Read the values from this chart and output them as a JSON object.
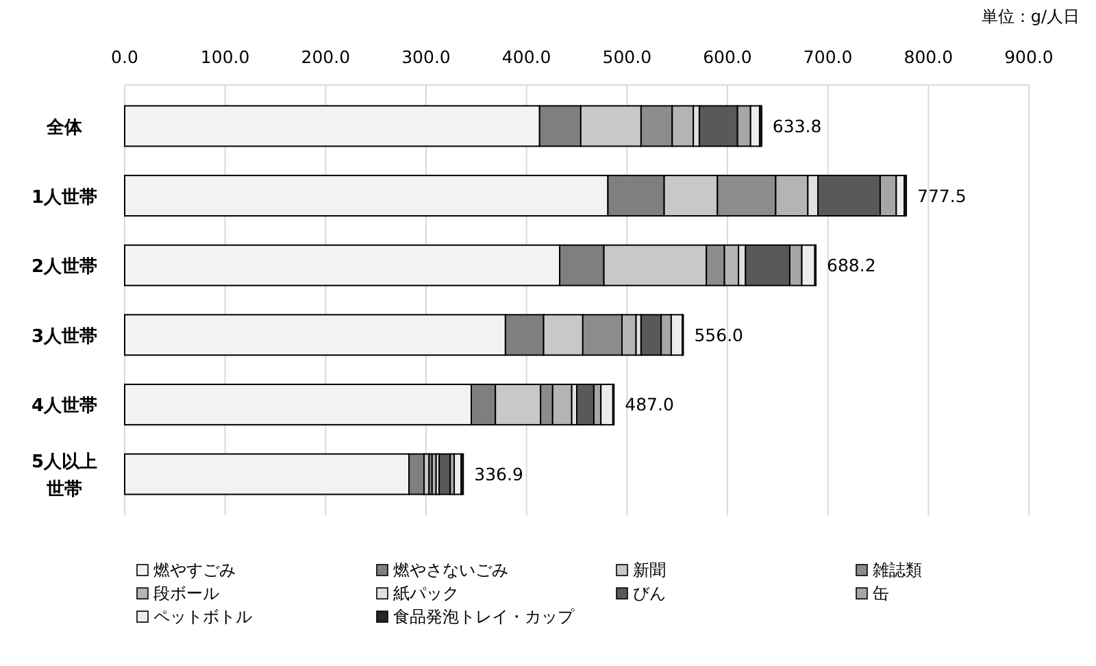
{
  "chart_data": {
    "type": "bar",
    "orientation": "horizontal",
    "stacked": true,
    "categories": [
      "全体",
      "1人世帯",
      "2人世帯",
      "3人世帯",
      "4人世帯",
      "5人以上世帯"
    ],
    "series": [
      {
        "name": "燃やすごみ",
        "color": "#f2f2f2",
        "values": [
          413,
          481,
          433,
          379,
          345,
          283
        ]
      },
      {
        "name": "燃やさないごみ",
        "color": "#7f7f7f",
        "values": [
          41,
          56,
          44,
          38,
          24,
          15
        ]
      },
      {
        "name": "新聞",
        "color": "#c8c8c8",
        "values": [
          60,
          53,
          102,
          39,
          45,
          5
        ]
      },
      {
        "name": "雑誌類",
        "color": "#8c8c8c",
        "values": [
          31,
          58,
          18,
          39,
          12,
          3
        ]
      },
      {
        "name": "段ボール",
        "color": "#b4b4b4",
        "values": [
          21,
          32,
          14,
          14,
          19,
          4
        ]
      },
      {
        "name": "紙パック",
        "color": "#e0e0e0",
        "values": [
          6,
          10,
          7,
          5,
          5,
          3
        ]
      },
      {
        "name": "びん",
        "color": "#595959",
        "values": [
          38,
          62,
          44,
          20,
          17,
          11
        ]
      },
      {
        "name": "缶",
        "color": "#a6a6a6",
        "values": [
          13,
          16,
          12,
          10,
          7,
          4
        ]
      },
      {
        "name": "ペットボトル",
        "color": "#ececec",
        "values": [
          9,
          8,
          13,
          11,
          12,
          7
        ]
      },
      {
        "name": "食品発泡トレイ・カップ",
        "color": "#262626",
        "values": [
          2,
          2,
          1,
          1,
          1,
          2
        ]
      }
    ],
    "totals": [
      "633.8",
      "777.5",
      "688.2",
      "556.0",
      "487.0",
      "336.9"
    ],
    "xlim": [
      0,
      900
    ],
    "xticks": [
      {
        "value": 0,
        "label": "0.0"
      },
      {
        "value": 100,
        "label": "100.0"
      },
      {
        "value": 200,
        "label": "200.0"
      },
      {
        "value": 300,
        "label": "300.0"
      },
      {
        "value": 400,
        "label": "400.0"
      },
      {
        "value": 500,
        "label": "500.0"
      },
      {
        "value": 600,
        "label": "600.0"
      },
      {
        "value": 700,
        "label": "700.0"
      },
      {
        "value": 800,
        "label": "800.0"
      },
      {
        "value": 900,
        "label": "900.0"
      }
    ],
    "grid": "x",
    "legend": "bottom",
    "annotations": [
      "単位：g/人日"
    ]
  }
}
